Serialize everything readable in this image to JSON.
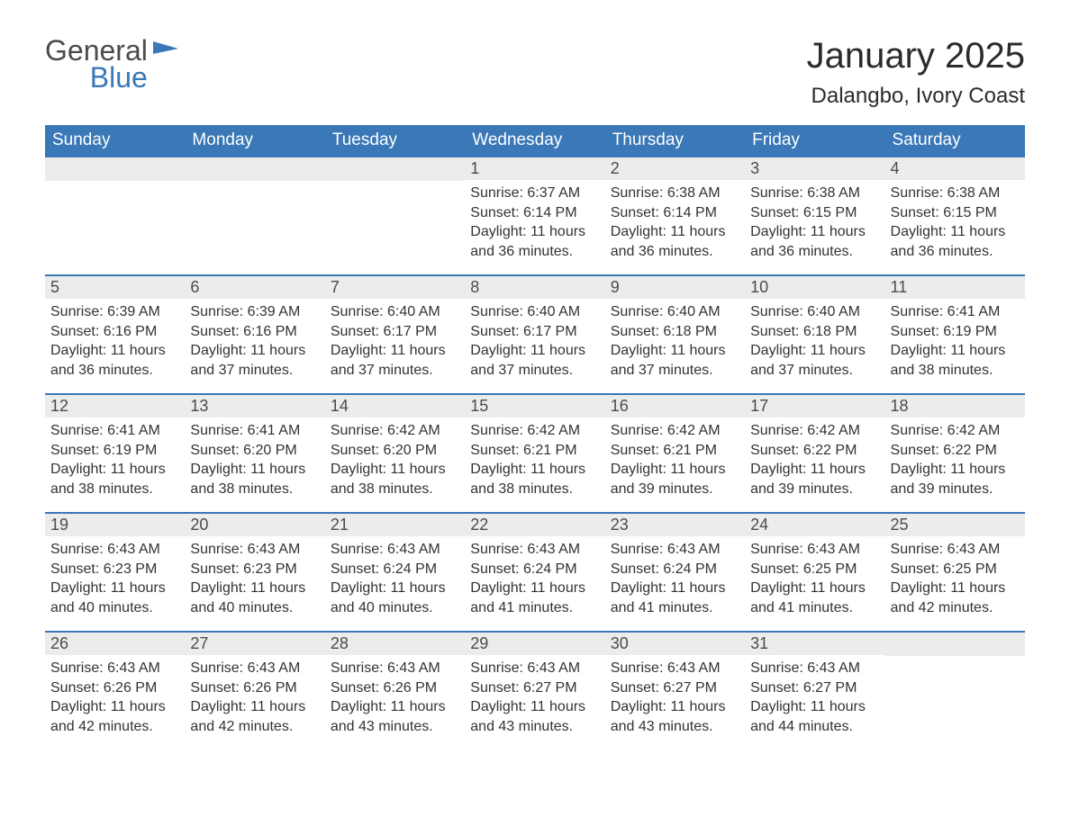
{
  "branding": {
    "logo_word1": "General",
    "logo_word2": "Blue",
    "flag_color": "#3a78b7"
  },
  "header": {
    "month_title": "January 2025",
    "location": "Dalangbo, Ivory Coast"
  },
  "calendar": {
    "day_headers": [
      "Sunday",
      "Monday",
      "Tuesday",
      "Wednesday",
      "Thursday",
      "Friday",
      "Saturday"
    ],
    "header_bg": "#3a78b7",
    "header_fg": "#ffffff",
    "daynum_bg": "#ececec",
    "row_border_color": "#3a78b7",
    "text_color": "#333333",
    "labels": {
      "sunrise": "Sunrise:",
      "sunset": "Sunset:",
      "daylight": "Daylight:"
    },
    "weeks": [
      [
        null,
        null,
        null,
        {
          "n": "1",
          "sunrise": "6:37 AM",
          "sunset": "6:14 PM",
          "daylight": "11 hours and 36 minutes."
        },
        {
          "n": "2",
          "sunrise": "6:38 AM",
          "sunset": "6:14 PM",
          "daylight": "11 hours and 36 minutes."
        },
        {
          "n": "3",
          "sunrise": "6:38 AM",
          "sunset": "6:15 PM",
          "daylight": "11 hours and 36 minutes."
        },
        {
          "n": "4",
          "sunrise": "6:38 AM",
          "sunset": "6:15 PM",
          "daylight": "11 hours and 36 minutes."
        }
      ],
      [
        {
          "n": "5",
          "sunrise": "6:39 AM",
          "sunset": "6:16 PM",
          "daylight": "11 hours and 36 minutes."
        },
        {
          "n": "6",
          "sunrise": "6:39 AM",
          "sunset": "6:16 PM",
          "daylight": "11 hours and 37 minutes."
        },
        {
          "n": "7",
          "sunrise": "6:40 AM",
          "sunset": "6:17 PM",
          "daylight": "11 hours and 37 minutes."
        },
        {
          "n": "8",
          "sunrise": "6:40 AM",
          "sunset": "6:17 PM",
          "daylight": "11 hours and 37 minutes."
        },
        {
          "n": "9",
          "sunrise": "6:40 AM",
          "sunset": "6:18 PM",
          "daylight": "11 hours and 37 minutes."
        },
        {
          "n": "10",
          "sunrise": "6:40 AM",
          "sunset": "6:18 PM",
          "daylight": "11 hours and 37 minutes."
        },
        {
          "n": "11",
          "sunrise": "6:41 AM",
          "sunset": "6:19 PM",
          "daylight": "11 hours and 38 minutes."
        }
      ],
      [
        {
          "n": "12",
          "sunrise": "6:41 AM",
          "sunset": "6:19 PM",
          "daylight": "11 hours and 38 minutes."
        },
        {
          "n": "13",
          "sunrise": "6:41 AM",
          "sunset": "6:20 PM",
          "daylight": "11 hours and 38 minutes."
        },
        {
          "n": "14",
          "sunrise": "6:42 AM",
          "sunset": "6:20 PM",
          "daylight": "11 hours and 38 minutes."
        },
        {
          "n": "15",
          "sunrise": "6:42 AM",
          "sunset": "6:21 PM",
          "daylight": "11 hours and 38 minutes."
        },
        {
          "n": "16",
          "sunrise": "6:42 AM",
          "sunset": "6:21 PM",
          "daylight": "11 hours and 39 minutes."
        },
        {
          "n": "17",
          "sunrise": "6:42 AM",
          "sunset": "6:22 PM",
          "daylight": "11 hours and 39 minutes."
        },
        {
          "n": "18",
          "sunrise": "6:42 AM",
          "sunset": "6:22 PM",
          "daylight": "11 hours and 39 minutes."
        }
      ],
      [
        {
          "n": "19",
          "sunrise": "6:43 AM",
          "sunset": "6:23 PM",
          "daylight": "11 hours and 40 minutes."
        },
        {
          "n": "20",
          "sunrise": "6:43 AM",
          "sunset": "6:23 PM",
          "daylight": "11 hours and 40 minutes."
        },
        {
          "n": "21",
          "sunrise": "6:43 AM",
          "sunset": "6:24 PM",
          "daylight": "11 hours and 40 minutes."
        },
        {
          "n": "22",
          "sunrise": "6:43 AM",
          "sunset": "6:24 PM",
          "daylight": "11 hours and 41 minutes."
        },
        {
          "n": "23",
          "sunrise": "6:43 AM",
          "sunset": "6:24 PM",
          "daylight": "11 hours and 41 minutes."
        },
        {
          "n": "24",
          "sunrise": "6:43 AM",
          "sunset": "6:25 PM",
          "daylight": "11 hours and 41 minutes."
        },
        {
          "n": "25",
          "sunrise": "6:43 AM",
          "sunset": "6:25 PM",
          "daylight": "11 hours and 42 minutes."
        }
      ],
      [
        {
          "n": "26",
          "sunrise": "6:43 AM",
          "sunset": "6:26 PM",
          "daylight": "11 hours and 42 minutes."
        },
        {
          "n": "27",
          "sunrise": "6:43 AM",
          "sunset": "6:26 PM",
          "daylight": "11 hours and 42 minutes."
        },
        {
          "n": "28",
          "sunrise": "6:43 AM",
          "sunset": "6:26 PM",
          "daylight": "11 hours and 43 minutes."
        },
        {
          "n": "29",
          "sunrise": "6:43 AM",
          "sunset": "6:27 PM",
          "daylight": "11 hours and 43 minutes."
        },
        {
          "n": "30",
          "sunrise": "6:43 AM",
          "sunset": "6:27 PM",
          "daylight": "11 hours and 43 minutes."
        },
        {
          "n": "31",
          "sunrise": "6:43 AM",
          "sunset": "6:27 PM",
          "daylight": "11 hours and 44 minutes."
        },
        null
      ]
    ]
  }
}
